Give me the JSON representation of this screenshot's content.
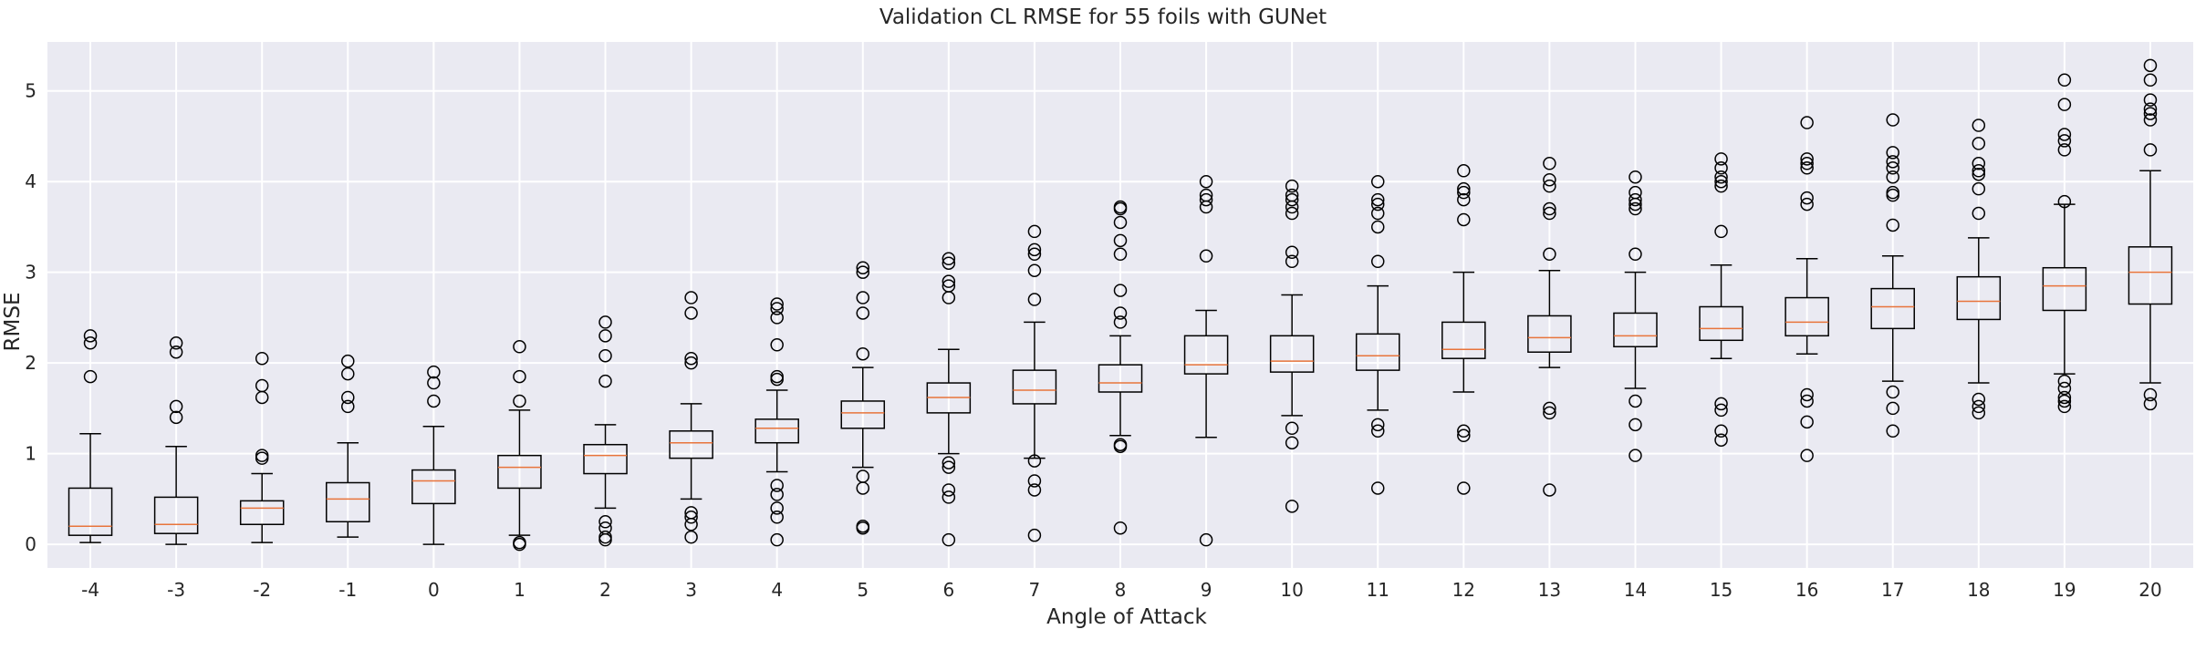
{
  "chart_data": {
    "type": "box",
    "title": "Validation CL RMSE for 55 foils with GUNet",
    "xlabel": "Angle of Attack",
    "ylabel": "RMSE",
    "ylim": [
      -0.26,
      5.54
    ],
    "yticks": [
      0,
      1,
      2,
      3,
      4,
      5
    ],
    "grid": true,
    "categories": [
      "-4",
      "-3",
      "-2",
      "-1",
      "0",
      "1",
      "2",
      "3",
      "4",
      "5",
      "6",
      "7",
      "8",
      "9",
      "10",
      "11",
      "12",
      "13",
      "14",
      "15",
      "16",
      "17",
      "18",
      "19",
      "20"
    ],
    "boxes": [
      {
        "whisker_low": 0.02,
        "q1": 0.1,
        "median": 0.2,
        "q3": 0.62,
        "whisker_high": 1.22,
        "outliers": [
          1.85,
          2.22,
          2.3
        ]
      },
      {
        "whisker_low": 0.0,
        "q1": 0.12,
        "median": 0.22,
        "q3": 0.52,
        "whisker_high": 1.08,
        "outliers": [
          1.4,
          1.52,
          2.12,
          2.22
        ]
      },
      {
        "whisker_low": 0.02,
        "q1": 0.22,
        "median": 0.4,
        "q3": 0.48,
        "whisker_high": 0.78,
        "outliers": [
          0.95,
          0.98,
          1.62,
          1.75,
          2.05
        ]
      },
      {
        "whisker_low": 0.08,
        "q1": 0.25,
        "median": 0.5,
        "q3": 0.68,
        "whisker_high": 1.12,
        "outliers": [
          1.52,
          1.62,
          1.88,
          2.02
        ]
      },
      {
        "whisker_low": 0.0,
        "q1": 0.45,
        "median": 0.7,
        "q3": 0.82,
        "whisker_high": 1.3,
        "outliers": [
          1.58,
          1.78,
          1.9
        ]
      },
      {
        "whisker_low": 0.1,
        "q1": 0.62,
        "median": 0.85,
        "q3": 0.98,
        "whisker_high": 1.48,
        "outliers": [
          0.0,
          0.02,
          1.58,
          1.85,
          2.18
        ]
      },
      {
        "whisker_low": 0.4,
        "q1": 0.78,
        "median": 0.98,
        "q3": 1.1,
        "whisker_high": 1.32,
        "outliers": [
          0.05,
          0.08,
          0.18,
          0.25,
          1.8,
          2.08,
          2.3,
          2.45
        ]
      },
      {
        "whisker_low": 0.5,
        "q1": 0.95,
        "median": 1.12,
        "q3": 1.25,
        "whisker_high": 1.55,
        "outliers": [
          0.08,
          0.22,
          0.3,
          0.35,
          2.0,
          2.05,
          2.55,
          2.72
        ]
      },
      {
        "whisker_low": 0.8,
        "q1": 1.12,
        "median": 1.28,
        "q3": 1.38,
        "whisker_high": 1.7,
        "outliers": [
          0.05,
          0.3,
          0.4,
          0.55,
          0.65,
          1.82,
          1.85,
          2.2,
          2.5,
          2.6,
          2.65
        ]
      },
      {
        "whisker_low": 0.85,
        "q1": 1.28,
        "median": 1.45,
        "q3": 1.58,
        "whisker_high": 1.95,
        "outliers": [
          0.18,
          0.2,
          0.62,
          0.75,
          2.1,
          2.55,
          2.72,
          3.0,
          3.05
        ]
      },
      {
        "whisker_low": 1.0,
        "q1": 1.45,
        "median": 1.62,
        "q3": 1.78,
        "whisker_high": 2.15,
        "outliers": [
          0.05,
          0.52,
          0.6,
          0.85,
          0.9,
          2.72,
          2.85,
          2.9,
          3.1,
          3.15
        ]
      },
      {
        "whisker_low": 0.95,
        "q1": 1.55,
        "median": 1.7,
        "q3": 1.92,
        "whisker_high": 2.45,
        "outliers": [
          0.1,
          0.6,
          0.7,
          0.92,
          2.7,
          3.02,
          3.2,
          3.25,
          3.45
        ]
      },
      {
        "whisker_low": 1.2,
        "q1": 1.68,
        "median": 1.78,
        "q3": 1.98,
        "whisker_high": 2.3,
        "outliers": [
          0.18,
          1.08,
          1.1,
          2.45,
          2.55,
          2.8,
          3.2,
          3.35,
          3.55,
          3.7,
          3.72
        ]
      },
      {
        "whisker_low": 1.18,
        "q1": 1.88,
        "median": 1.98,
        "q3": 2.3,
        "whisker_high": 2.58,
        "outliers": [
          0.05,
          3.18,
          3.72,
          3.8,
          3.85,
          4.0
        ]
      },
      {
        "whisker_low": 1.42,
        "q1": 1.9,
        "median": 2.02,
        "q3": 2.3,
        "whisker_high": 2.75,
        "outliers": [
          0.42,
          1.12,
          1.28,
          3.12,
          3.22,
          3.65,
          3.72,
          3.8,
          3.85,
          3.95
        ]
      },
      {
        "whisker_low": 1.48,
        "q1": 1.92,
        "median": 2.08,
        "q3": 2.32,
        "whisker_high": 2.85,
        "outliers": [
          0.62,
          1.25,
          1.32,
          3.12,
          3.5,
          3.65,
          3.75,
          3.8,
          4.0
        ]
      },
      {
        "whisker_low": 1.68,
        "q1": 2.05,
        "median": 2.15,
        "q3": 2.45,
        "whisker_high": 3.0,
        "outliers": [
          0.62,
          1.2,
          1.25,
          3.58,
          3.8,
          3.88,
          3.92,
          4.12
        ]
      },
      {
        "whisker_low": 1.95,
        "q1": 2.12,
        "median": 2.28,
        "q3": 2.52,
        "whisker_high": 3.02,
        "outliers": [
          0.6,
          1.45,
          1.5,
          3.2,
          3.65,
          3.7,
          3.95,
          4.02,
          4.2
        ]
      },
      {
        "whisker_low": 1.72,
        "q1": 2.18,
        "median": 2.3,
        "q3": 2.55,
        "whisker_high": 3.0,
        "outliers": [
          0.98,
          1.32,
          1.58,
          3.2,
          3.7,
          3.75,
          3.8,
          3.88,
          4.05
        ]
      },
      {
        "whisker_low": 2.05,
        "q1": 2.25,
        "median": 2.38,
        "q3": 2.62,
        "whisker_high": 3.08,
        "outliers": [
          1.15,
          1.25,
          1.48,
          1.55,
          3.45,
          3.95,
          4.0,
          4.05,
          4.15,
          4.25
        ]
      },
      {
        "whisker_low": 2.1,
        "q1": 2.3,
        "median": 2.45,
        "q3": 2.72,
        "whisker_high": 3.15,
        "outliers": [
          0.98,
          1.35,
          1.58,
          1.65,
          3.75,
          3.82,
          4.15,
          4.2,
          4.25,
          4.65
        ]
      },
      {
        "whisker_low": 1.8,
        "q1": 2.38,
        "median": 2.62,
        "q3": 2.82,
        "whisker_high": 3.18,
        "outliers": [
          1.25,
          1.5,
          1.68,
          3.52,
          3.85,
          3.88,
          4.05,
          4.15,
          4.22,
          4.32,
          4.68
        ]
      },
      {
        "whisker_low": 1.78,
        "q1": 2.48,
        "median": 2.68,
        "q3": 2.95,
        "whisker_high": 3.38,
        "outliers": [
          1.45,
          1.52,
          1.6,
          3.65,
          3.92,
          4.08,
          4.12,
          4.2,
          4.42,
          4.62
        ]
      },
      {
        "whisker_low": 1.88,
        "q1": 2.58,
        "median": 2.85,
        "q3": 3.05,
        "whisker_high": 3.75,
        "outliers": [
          1.52,
          1.58,
          1.62,
          1.72,
          1.8,
          3.78,
          4.35,
          4.45,
          4.52,
          4.85,
          5.12
        ]
      },
      {
        "whisker_low": 1.78,
        "q1": 2.65,
        "median": 3.0,
        "q3": 3.28,
        "whisker_high": 4.12,
        "outliers": [
          1.55,
          1.65,
          4.35,
          4.68,
          4.75,
          4.8,
          4.9,
          5.12,
          5.28
        ]
      }
    ],
    "colors": {
      "plot_background": "#EAEAF2",
      "grid": "#FFFFFF",
      "box": "#000000",
      "median": "#E8743B",
      "text": "#262626"
    }
  }
}
